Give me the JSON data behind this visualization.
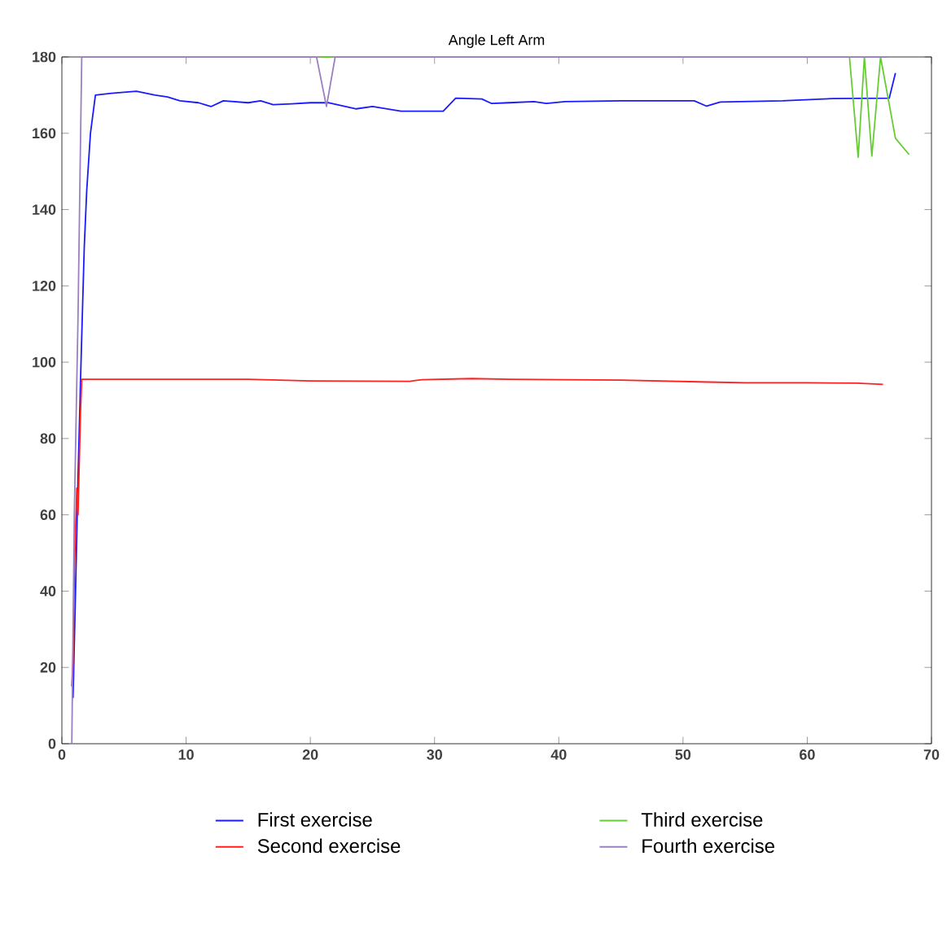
{
  "chart_data": {
    "type": "line",
    "title": "Angle Left Arm",
    "xlim": [
      0,
      70
    ],
    "ylim": [
      0,
      180
    ],
    "xticks": [
      0,
      10,
      20,
      30,
      40,
      50,
      60,
      70
    ],
    "yticks": [
      0,
      20,
      40,
      60,
      80,
      100,
      120,
      140,
      160,
      180
    ],
    "legend": "bottom",
    "grid": false,
    "marker": "none",
    "line_style": "solid",
    "series": [
      {
        "name": "First exercise",
        "color": "#1a1aff",
        "x": [
          0.9,
          1.1,
          1.3,
          1.5,
          1.6,
          1.8,
          2.0,
          2.3,
          2.7,
          4,
          6,
          7.5,
          8.5,
          9.5,
          11,
          12,
          13,
          15,
          16,
          17,
          18.5,
          20,
          21.5,
          23.7,
          25,
          27.3,
          30.7,
          31.7,
          33.8,
          34.6,
          36,
          38,
          39,
          40.5,
          45,
          50.9,
          51.9,
          53,
          58,
          62.1,
          66.6,
          67.1
        ],
        "values": [
          12,
          40,
          70,
          95,
          107,
          130,
          145,
          160,
          170,
          170.5,
          171,
          170,
          169.5,
          168.5,
          168,
          167,
          168.5,
          168,
          168.5,
          167.5,
          167.7,
          168,
          168,
          166.4,
          167,
          165.8,
          165.8,
          169.2,
          169,
          167.8,
          168,
          168.3,
          167.8,
          168.3,
          168.5,
          168.5,
          167.1,
          168.2,
          168.5,
          169.1,
          169.2,
          175.8
        ]
      },
      {
        "name": "Second exercise",
        "color": "#ff2020",
        "x": [
          0.8,
          0.9,
          1.0,
          1.2,
          1.3,
          1.5,
          1.6,
          10,
          15,
          20,
          28,
          29,
          33,
          36,
          45,
          52,
          55,
          60,
          64,
          66.1
        ],
        "values": [
          15,
          22,
          45,
          67,
          60,
          87,
          95.5,
          95.5,
          95.5,
          95.1,
          95,
          95.4,
          95.7,
          95.5,
          95.3,
          94.8,
          94.6,
          94.6,
          94.5,
          94.2
        ]
      },
      {
        "name": "Third exercise",
        "color": "#66cc33",
        "x": [
          20.8,
          21.7,
          40,
          63.4,
          64.1,
          64.6,
          65.2,
          65.9,
          67.1,
          68.2
        ],
        "values": [
          180,
          180,
          null,
          180,
          153.7,
          180,
          154,
          180,
          158.7,
          154.4
        ]
      },
      {
        "name": "Fourth exercise",
        "color": "#9980c0",
        "x": [
          0.8,
          1.0,
          1.3,
          1.5,
          1.6,
          20.5,
          21.3,
          22,
          66.5
        ],
        "values": [
          0,
          60,
          112,
          158,
          180,
          180,
          167,
          180,
          180
        ]
      }
    ]
  }
}
